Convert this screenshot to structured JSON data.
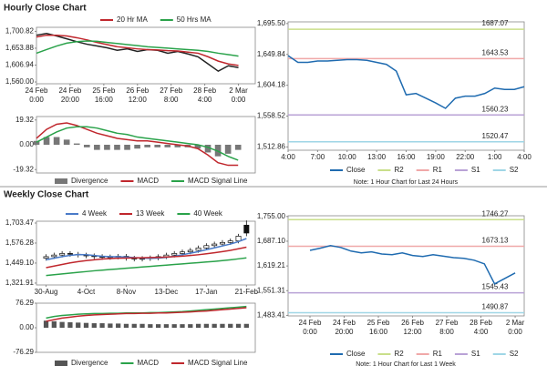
{
  "chart_data": [
    {
      "type": "line",
      "title": "Hourly Close Chart",
      "x": [
        0,
        6,
        12,
        18,
        24,
        30,
        36,
        42,
        48,
        54,
        60,
        66,
        72,
        78,
        84,
        90,
        96,
        102,
        108,
        114,
        120
      ],
      "xlim": [
        0,
        130
      ],
      "xticks": [
        {
          "value": 0,
          "label": [
            "24 Feb",
            "0:00"
          ]
        },
        {
          "value": 20,
          "label": [
            "24 Feb",
            "20:00"
          ]
        },
        {
          "value": 40,
          "label": [
            "25 Feb",
            "16:00"
          ]
        },
        {
          "value": 60,
          "label": [
            "26 Feb",
            "12:00"
          ]
        },
        {
          "value": 80,
          "label": [
            "27 Feb",
            "8:00"
          ]
        },
        {
          "value": 100,
          "label": [
            "28 Feb",
            "4:00"
          ]
        },
        {
          "value": 120,
          "label": [
            "2 Mar",
            "0:00"
          ]
        }
      ],
      "ylim": [
        1555,
        1712
      ],
      "yticks": [
        {
          "value": 1560,
          "label": "1,560.00"
        },
        {
          "value": 1606.94,
          "label": "1,606.94"
        },
        {
          "value": 1653.88,
          "label": "1,653.88"
        },
        {
          "value": 1700.82,
          "label": "1,700.82"
        }
      ],
      "series": [
        {
          "color": "#222222",
          "values": [
            1690,
            1695,
            1688,
            1680,
            1672,
            1665,
            1660,
            1655,
            1648,
            1652,
            1645,
            1650,
            1648,
            1640,
            1645,
            1638,
            1630,
            1610,
            1590,
            1605,
            1600
          ]
        },
        {
          "name": "20 Hr MA",
          "color": "#c0272d",
          "values": [
            1685,
            1690,
            1690,
            1688,
            1683,
            1677,
            1670,
            1664,
            1658,
            1655,
            1652,
            1650,
            1649,
            1647,
            1646,
            1643,
            1640,
            1630,
            1618,
            1610,
            1606
          ]
        },
        {
          "name": "50 Hrs MA",
          "color": "#2aa24a",
          "values": [
            1640,
            1650,
            1660,
            1668,
            1672,
            1674,
            1673,
            1670,
            1667,
            1664,
            1661,
            1658,
            1656,
            1654,
            1652,
            1650,
            1648,
            1645,
            1640,
            1636,
            1632
          ]
        }
      ]
    },
    {
      "type": "line",
      "xlim": [
        0,
        21.7
      ],
      "ylim": [
        -22,
        22
      ],
      "yticks": [
        -19.32,
        {
          "value": 0,
          "label": "0.00"
        },
        19.32
      ],
      "series": [
        {
          "name": "Divergence",
          "type": "bar",
          "color": "#777777",
          "values": [
            3,
            6,
            6,
            4,
            1,
            -2,
            -4,
            -4,
            -4,
            -4,
            -3,
            -2,
            -2,
            -2,
            -2,
            -2,
            -3,
            -6,
            -9,
            -7,
            -4
          ]
        },
        {
          "name": "MACD",
          "color": "#c0272d",
          "values": [
            5,
            12,
            16,
            17,
            15,
            12,
            9,
            7,
            5,
            4,
            3,
            3,
            2,
            1,
            0,
            -1,
            -3,
            -8,
            -14,
            -16,
            -16
          ]
        },
        {
          "name": "MACD Signal Line",
          "color": "#2aa24a",
          "values": [
            2,
            6,
            10,
            13,
            14,
            14,
            13,
            11,
            9,
            8,
            6,
            5,
            4,
            3,
            2,
            1,
            0,
            -2,
            -5,
            -9,
            -12
          ]
        }
      ]
    },
    {
      "type": "line",
      "x": [
        0,
        1,
        2,
        3,
        4,
        5,
        6,
        7,
        8,
        9,
        10,
        11,
        12,
        13,
        14,
        15,
        16,
        17,
        18,
        19,
        20,
        21,
        22,
        23,
        24
      ],
      "xlim": [
        0,
        24
      ],
      "xticks": [
        {
          "value": 0,
          "label": "4:00"
        },
        {
          "value": 3,
          "label": "7:00"
        },
        {
          "value": 6,
          "label": "10:00"
        },
        {
          "value": 9,
          "label": "13:00"
        },
        {
          "value": 12,
          "label": "16:00"
        },
        {
          "value": 15,
          "label": "19:00"
        },
        {
          "value": 18,
          "label": "22:00"
        },
        {
          "value": 21,
          "label": "1:00"
        },
        {
          "value": 24,
          "label": "4:00"
        }
      ],
      "ylim": [
        1508,
        1698
      ],
      "yticks": [
        {
          "value": 1512.86,
          "label": "1,512.86"
        },
        {
          "value": 1558.52,
          "label": "1,558.52"
        },
        {
          "value": 1604.18,
          "label": "1,604.18"
        },
        {
          "value": 1649.84,
          "label": "1,649.84"
        },
        {
          "value": 1695.5,
          "label": "1,695.50"
        }
      ],
      "series": [
        {
          "name": "Close",
          "color": "#1f6bb0",
          "values": [
            1648,
            1638,
            1638,
            1640,
            1640,
            1641,
            1642,
            1642,
            1641,
            1638,
            1635,
            1625,
            1590,
            1592,
            1585,
            1578,
            1570,
            1585,
            1588,
            1588,
            1592,
            1600,
            1598,
            1598,
            1602
          ]
        }
      ],
      "levels": [
        {
          "name": "R2",
          "value": 1687.07,
          "color": "#c9df8a"
        },
        {
          "name": "R1",
          "value": 1643.53,
          "color": "#f0a8a8"
        },
        {
          "name": "S1",
          "value": 1560.23,
          "color": "#b9a2d6"
        },
        {
          "name": "S2",
          "value": 1520.47,
          "color": "#9fd6e6"
        }
      ],
      "note": "Note: 1 Hour Chart for Last 24 Hours"
    },
    {
      "type": "candlestick",
      "title": "Weekly Close Chart",
      "xlim": [
        -1.2,
        26.1
      ],
      "xticks": [
        {
          "value": 0,
          "label": "30-Aug"
        },
        {
          "value": 5,
          "label": "4-Oct"
        },
        {
          "value": 10,
          "label": "8-Nov"
        },
        {
          "value": 15,
          "label": "13-Dec"
        },
        {
          "value": 20,
          "label": "17-Jan"
        },
        {
          "value": 25,
          "label": "21-Feb"
        }
      ],
      "ylim": [
        1310,
        1715
      ],
      "yticks": [
        {
          "value": 1321.91,
          "label": "1,321.91"
        },
        {
          "value": 1449.1,
          "label": "1,449.10"
        },
        {
          "value": 1576.28,
          "label": "1,576.28"
        },
        {
          "value": 1703.47,
          "label": "1,703.47"
        }
      ],
      "open": [
        1480,
        1490,
        1500,
        1510,
        1505,
        1500,
        1495,
        1490,
        1485,
        1488,
        1492,
        1480,
        1475,
        1478,
        1482,
        1490,
        1500,
        1510,
        1520,
        1530,
        1545,
        1560,
        1570,
        1580,
        1590,
        1690
      ],
      "high": [
        1505,
        1515,
        1525,
        1525,
        1520,
        1515,
        1510,
        1505,
        1503,
        1507,
        1507,
        1495,
        1493,
        1497,
        1505,
        1515,
        1525,
        1535,
        1545,
        1560,
        1575,
        1585,
        1595,
        1605,
        1635,
        1720
      ],
      "low": [
        1465,
        1475,
        1485,
        1490,
        1485,
        1480,
        1475,
        1470,
        1470,
        1473,
        1465,
        1460,
        1460,
        1463,
        1467,
        1475,
        1485,
        1495,
        1505,
        1515,
        1530,
        1545,
        1555,
        1565,
        1575,
        1620
      ],
      "close": [
        1490,
        1500,
        1510,
        1505,
        1500,
        1495,
        1490,
        1485,
        1488,
        1492,
        1480,
        1475,
        1478,
        1482,
        1490,
        1500,
        1510,
        1520,
        1530,
        1545,
        1560,
        1570,
        1580,
        1590,
        1620,
        1640
      ],
      "series": [
        {
          "name": "4 Week",
          "color": "#4a7bc8",
          "values": [
            1470,
            1480,
            1490,
            1498,
            1503,
            1502,
            1497,
            1492,
            1490,
            1489,
            1487,
            1484,
            1481,
            1479,
            1481,
            1485,
            1492,
            1502,
            1512,
            1522,
            1534,
            1546,
            1558,
            1570,
            1585,
            1605
          ]
        },
        {
          "name": "13 Week",
          "color": "#c0272d",
          "values": [
            1420,
            1430,
            1440,
            1450,
            1458,
            1465,
            1470,
            1475,
            1478,
            1480,
            1481,
            1482,
            1483,
            1484,
            1485,
            1487,
            1490,
            1493,
            1497,
            1502,
            1508,
            1515,
            1522,
            1530,
            1540,
            1550
          ]
        },
        {
          "name": "40 Week",
          "color": "#2aa24a",
          "values": [
            1370,
            1375,
            1380,
            1385,
            1390,
            1395,
            1400,
            1404,
            1408,
            1412,
            1416,
            1420,
            1424,
            1428,
            1432,
            1436,
            1440,
            1444,
            1448,
            1452,
            1456,
            1460,
            1465,
            1470,
            1476,
            1482
          ]
        }
      ]
    },
    {
      "type": "line",
      "xlim": [
        -1.2,
        26.1
      ],
      "ylim": [
        -76.29,
        76.29
      ],
      "yticks": [
        -76.29,
        {
          "value": 0,
          "label": "0.00"
        },
        76.29
      ],
      "series": [
        {
          "name": "Divergence",
          "type": "bar",
          "color": "#555555",
          "values": [
            22,
            20,
            18,
            17,
            16,
            15,
            14,
            14,
            13,
            13,
            12,
            12,
            12,
            11,
            11,
            11,
            11,
            11,
            11,
            12,
            12,
            12,
            12,
            12,
            12,
            12
          ]
        },
        {
          "name": "MACD",
          "color": "#2aa24a",
          "values": [
            30,
            35,
            38,
            40,
            42,
            43,
            44,
            44,
            45,
            45,
            46,
            46,
            46,
            47,
            47,
            48,
            49,
            50,
            52,
            54,
            56,
            58,
            60,
            62,
            64,
            66
          ]
        },
        {
          "name": "MACD Signal Line",
          "color": "#c0272d",
          "values": [
            20,
            25,
            30,
            33,
            36,
            38,
            40,
            41,
            42,
            43,
            44,
            44,
            45,
            45,
            46,
            46,
            47,
            48,
            49,
            51,
            52,
            54,
            56,
            58,
            60,
            62
          ]
        }
      ]
    },
    {
      "type": "line",
      "x": [
        0,
        6,
        12,
        18,
        24,
        30,
        36,
        42,
        48,
        54,
        60,
        66,
        72,
        78,
        84,
        90,
        96,
        102,
        108,
        114,
        120
      ],
      "xlim": [
        -12.8,
        125.3
      ],
      "xticks": [
        {
          "value": 0,
          "label": [
            "24 Feb",
            "0:00"
          ]
        },
        {
          "value": 20,
          "label": [
            "24 Feb",
            "20:00"
          ]
        },
        {
          "value": 40,
          "label": [
            "25 Feb",
            "16:00"
          ]
        },
        {
          "value": 60,
          "label": [
            "26 Feb",
            "12:00"
          ]
        },
        {
          "value": 80,
          "label": [
            "27 Feb",
            "8:00"
          ]
        },
        {
          "value": 100,
          "label": [
            "28 Feb",
            "4:00"
          ]
        },
        {
          "value": 120,
          "label": [
            "2 Mar",
            "0:00"
          ]
        }
      ],
      "ylim": [
        1482,
        1757
      ],
      "yticks": [
        {
          "value": 1483.41,
          "label": "1,483.41"
        },
        {
          "value": 1551.31,
          "label": "1,551.31"
        },
        {
          "value": 1619.21,
          "label": "1,619.21"
        },
        {
          "value": 1687.1,
          "label": "1,687.10"
        },
        {
          "value": 1755,
          "label": "1,755.00"
        }
      ],
      "series": [
        {
          "name": "Close",
          "color": "#1f6bb0",
          "values": [
            1662,
            1668,
            1675,
            1670,
            1660,
            1655,
            1658,
            1652,
            1650,
            1655,
            1648,
            1645,
            1650,
            1646,
            1642,
            1640,
            1635,
            1625,
            1570,
            1585,
            1600
          ]
        }
      ],
      "levels": [
        {
          "name": "R2",
          "value": 1746.27,
          "color": "#c9df8a"
        },
        {
          "name": "R1",
          "value": 1673.13,
          "color": "#f0a8a8"
        },
        {
          "name": "S1",
          "value": 1545.43,
          "color": "#b9a2d6"
        },
        {
          "name": "S2",
          "value": 1490.87,
          "color": "#9fd6e6"
        }
      ],
      "note": "Note: 1 Hour Chart for Last 1 Week"
    }
  ]
}
